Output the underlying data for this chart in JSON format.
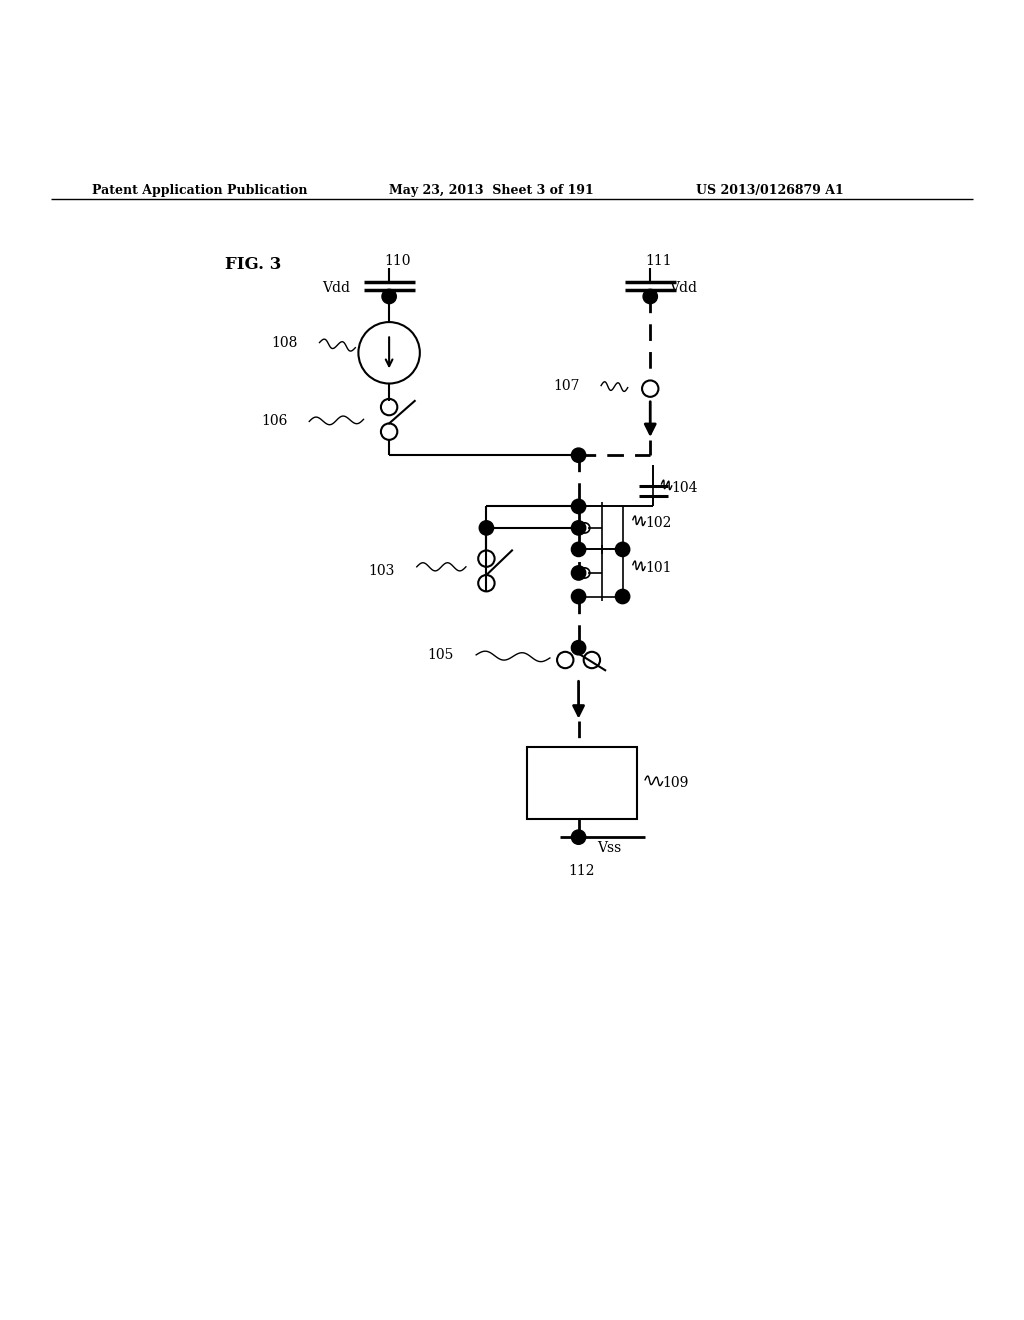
{
  "title_left": "Patent Application Publication",
  "title_mid": "May 23, 2013  Sheet 3 of 191",
  "title_right": "US 2013/0126879 A1",
  "fig_label": "FIG. 3",
  "bg_color": "#ffffff",
  "line_color": "#000000"
}
